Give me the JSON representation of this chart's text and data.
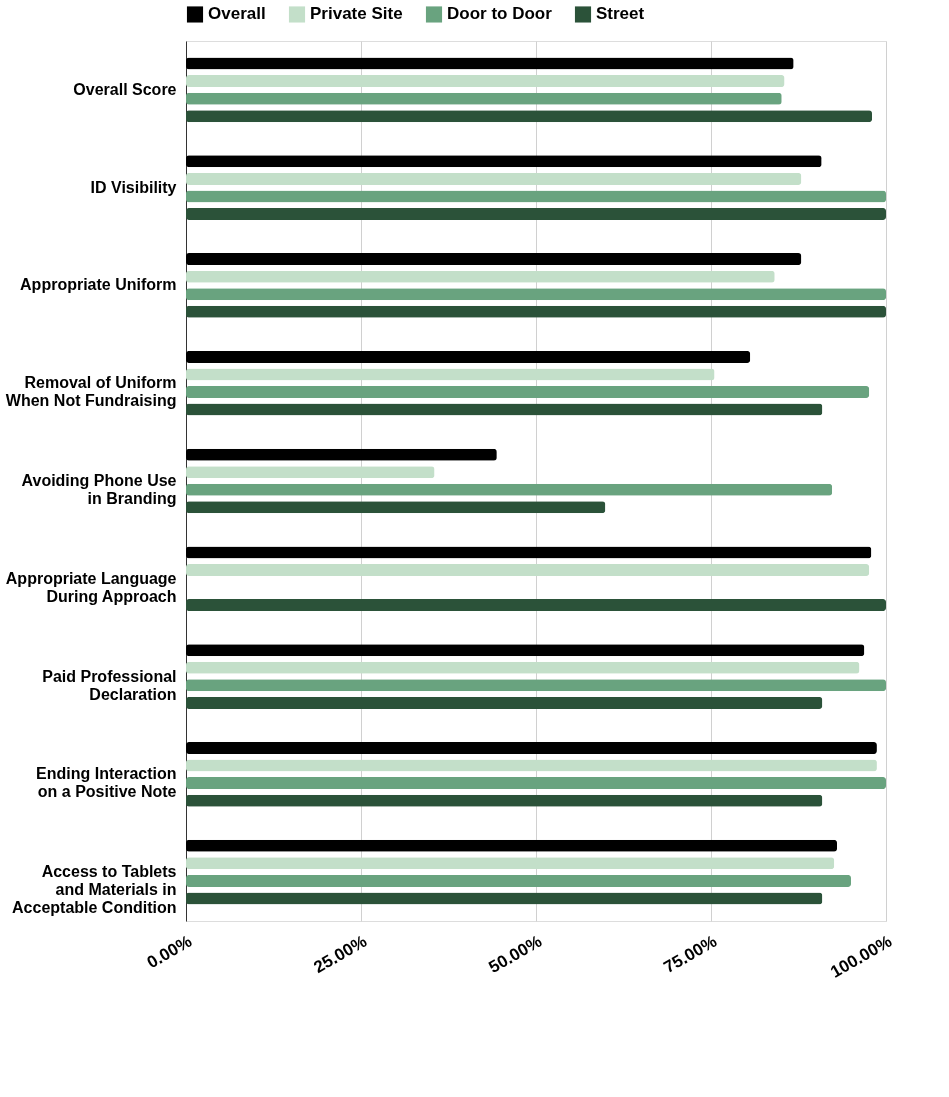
{
  "chart_data": {
    "type": "bar",
    "orientation": "horizontal",
    "categories": [
      "Overall Score",
      "ID Visibility",
      "Appropriate Uniform",
      "Removal of Uniform When Not Fundraising",
      "Avoiding Phone Use in Branding",
      "Appropriate Language During Approach",
      "Paid Professional Declaration",
      "Ending Interaction on a Positive Note",
      "Access to Tablets and Materials in Acceptable Condition"
    ],
    "series": [
      {
        "name": "Overall",
        "color": "#000000",
        "values": [
          86.8,
          90.8,
          87.9,
          80.6,
          44.4,
          97.9,
          96.9,
          98.7,
          93.0
        ]
      },
      {
        "name": "Private Site",
        "color": "#c3dfc9",
        "values": [
          85.5,
          87.9,
          84.1,
          75.5,
          35.5,
          97.6,
          96.2,
          98.7,
          92.6
        ]
      },
      {
        "name": "Door to Door",
        "color": "#69a37f",
        "values": [
          85.1,
          100,
          100,
          97.6,
          92.3,
          null,
          100,
          100,
          95.0
        ]
      },
      {
        "name": "Street",
        "color": "#2b5239",
        "values": [
          98.0,
          100,
          100,
          90.9,
          59.9,
          100,
          90.9,
          90.9,
          90.9
        ]
      }
    ],
    "xlim": [
      0,
      100
    ],
    "xticks": [
      {
        "value": 0,
        "label": "0.00%"
      },
      {
        "value": 25,
        "label": "25.00%"
      },
      {
        "value": 50,
        "label": "50.00%"
      },
      {
        "value": 75,
        "label": "75.00%"
      },
      {
        "value": 100,
        "label": "100.00%"
      }
    ],
    "grid": "x",
    "legend": "top"
  }
}
